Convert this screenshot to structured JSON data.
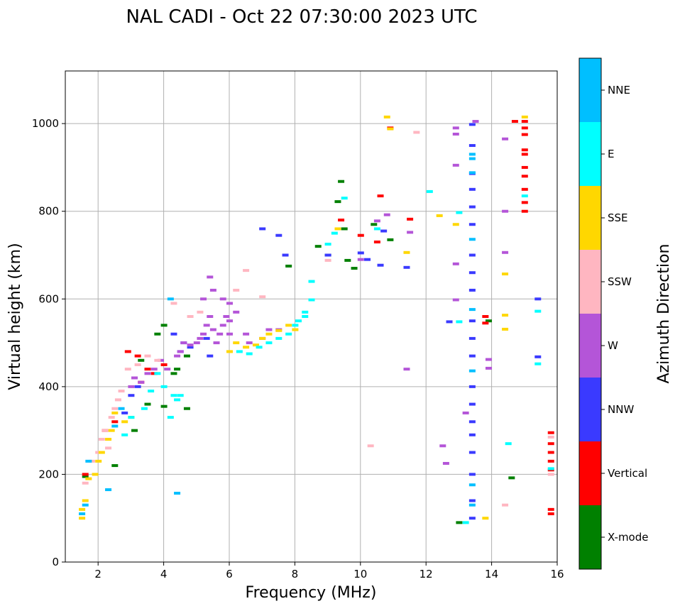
{
  "chart_data": {
    "type": "scatter",
    "title": "NAL CADI - Oct 22 07:30:00 2023 UTC",
    "xlabel": "Frequency (MHz)",
    "ylabel": "Virtual height (km)",
    "xlim": [
      1,
      16
    ],
    "ylim": [
      0,
      1120
    ],
    "xticks": [
      2,
      4,
      6,
      8,
      10,
      12,
      14,
      16
    ],
    "yticks": [
      0,
      200,
      400,
      600,
      800,
      1000
    ],
    "grid": true,
    "colorbar": {
      "label": "Azimuth Direction",
      "categories": [
        "X-mode",
        "Vertical",
        "NNW",
        "W",
        "SSW",
        "SSE",
        "E",
        "NNE"
      ],
      "colors": [
        "#008000",
        "#ff0000",
        "#3a3aff",
        "#b455d8",
        "#ffb6c1",
        "#ffd700",
        "#00ffff",
        "#00bfff"
      ]
    },
    "series": [
      {
        "name": "X-mode",
        "points": [
          [
            1.6,
            195
          ],
          [
            2.5,
            220
          ],
          [
            3.1,
            300
          ],
          [
            3.5,
            360
          ],
          [
            4.0,
            355
          ],
          [
            4.0,
            540
          ],
          [
            4.4,
            440
          ],
          [
            4.7,
            470
          ],
          [
            4.7,
            350
          ],
          [
            3.3,
            460
          ],
          [
            7.8,
            675
          ],
          [
            8.7,
            720
          ],
          [
            9.0,
            700
          ],
          [
            9.4,
            868
          ],
          [
            9.3,
            822
          ],
          [
            9.6,
            688
          ],
          [
            9.8,
            670
          ],
          [
            10.4,
            770
          ],
          [
            10.9,
            735
          ],
          [
            13.0,
            90
          ],
          [
            13.9,
            550
          ],
          [
            14.6,
            192
          ],
          [
            3.8,
            520
          ],
          [
            4.3,
            430
          ],
          [
            9.5,
            760
          ]
        ]
      },
      {
        "name": "Vertical",
        "points": [
          [
            1.6,
            200
          ],
          [
            2.2,
            300
          ],
          [
            2.5,
            320
          ],
          [
            2.9,
            480
          ],
          [
            3.2,
            470
          ],
          [
            3.3,
            410
          ],
          [
            3.5,
            440
          ],
          [
            3.7,
            430
          ],
          [
            4.0,
            450
          ],
          [
            9.4,
            780
          ],
          [
            10.0,
            745
          ],
          [
            10.5,
            730
          ],
          [
            10.6,
            835
          ],
          [
            10.9,
            990
          ],
          [
            11.5,
            782
          ],
          [
            13.8,
            560
          ],
          [
            13.8,
            545
          ],
          [
            14.7,
            1005
          ],
          [
            15.0,
            1005
          ],
          [
            15.0,
            990
          ],
          [
            15.0,
            975
          ],
          [
            15.0,
            940
          ],
          [
            15.0,
            930
          ],
          [
            15.0,
            900
          ],
          [
            15.0,
            880
          ],
          [
            15.0,
            850
          ],
          [
            15.0,
            820
          ],
          [
            15.0,
            800
          ],
          [
            15.8,
            295
          ],
          [
            15.8,
            270
          ],
          [
            15.8,
            250
          ],
          [
            15.8,
            230
          ],
          [
            15.8,
            210
          ],
          [
            15.8,
            120
          ],
          [
            15.8,
            110
          ]
        ]
      },
      {
        "name": "NNW",
        "points": [
          [
            2.8,
            340
          ],
          [
            3.0,
            380
          ],
          [
            3.2,
            400
          ],
          [
            4.3,
            520
          ],
          [
            4.5,
            480
          ],
          [
            4.6,
            500
          ],
          [
            4.8,
            490
          ],
          [
            5.3,
            510
          ],
          [
            5.4,
            470
          ],
          [
            7.0,
            760
          ],
          [
            7.7,
            700
          ],
          [
            7.5,
            745
          ],
          [
            9.0,
            700
          ],
          [
            10.0,
            705
          ],
          [
            10.2,
            690
          ],
          [
            10.6,
            677
          ],
          [
            10.7,
            755
          ],
          [
            11.4,
            672
          ],
          [
            12.7,
            548
          ],
          [
            13.4,
            998
          ],
          [
            13.4,
            950
          ],
          [
            13.4,
            886
          ],
          [
            13.4,
            850
          ],
          [
            13.4,
            810
          ],
          [
            13.4,
            770
          ],
          [
            13.4,
            700
          ],
          [
            13.4,
            660
          ],
          [
            13.4,
            620
          ],
          [
            13.4,
            550
          ],
          [
            13.4,
            510
          ],
          [
            13.4,
            470
          ],
          [
            13.4,
            400
          ],
          [
            13.4,
            360
          ],
          [
            13.4,
            320
          ],
          [
            13.4,
            290
          ],
          [
            13.4,
            250
          ],
          [
            13.4,
            200
          ],
          [
            13.4,
            140
          ],
          [
            13.4,
            100
          ],
          [
            15.4,
            600
          ],
          [
            15.4,
            468
          ]
        ]
      },
      {
        "name": "W",
        "points": [
          [
            3.0,
            400
          ],
          [
            3.1,
            420
          ],
          [
            3.3,
            410
          ],
          [
            3.5,
            430
          ],
          [
            3.7,
            440
          ],
          [
            3.9,
            460
          ],
          [
            4.1,
            440
          ],
          [
            4.4,
            470
          ],
          [
            4.5,
            480
          ],
          [
            4.6,
            500
          ],
          [
            4.8,
            495
          ],
          [
            5.0,
            500
          ],
          [
            5.1,
            510
          ],
          [
            5.2,
            520
          ],
          [
            5.3,
            540
          ],
          [
            5.4,
            560
          ],
          [
            5.5,
            530
          ],
          [
            5.6,
            500
          ],
          [
            5.7,
            520
          ],
          [
            5.8,
            540
          ],
          [
            5.9,
            560
          ],
          [
            6.0,
            520
          ],
          [
            6.0,
            550
          ],
          [
            5.2,
            600
          ],
          [
            5.4,
            650
          ],
          [
            5.5,
            620
          ],
          [
            5.8,
            600
          ],
          [
            6.0,
            590
          ],
          [
            6.2,
            570
          ],
          [
            6.5,
            520
          ],
          [
            6.6,
            500
          ],
          [
            7.0,
            510
          ],
          [
            7.2,
            530
          ],
          [
            7.5,
            530
          ],
          [
            10.0,
            690
          ],
          [
            10.5,
            778
          ],
          [
            10.8,
            792
          ],
          [
            11.4,
            440
          ],
          [
            11.5,
            752
          ],
          [
            12.5,
            265
          ],
          [
            12.6,
            225
          ],
          [
            12.9,
            990
          ],
          [
            12.9,
            976
          ],
          [
            12.9,
            905
          ],
          [
            12.9,
            680
          ],
          [
            12.9,
            598
          ],
          [
            13.2,
            340
          ],
          [
            13.5,
            1005
          ],
          [
            14.4,
            800
          ],
          [
            14.4,
            965
          ],
          [
            14.4,
            706
          ],
          [
            13.9,
            462
          ],
          [
            13.9,
            442
          ]
        ]
      },
      {
        "name": "SSW",
        "points": [
          [
            1.6,
            180
          ],
          [
            1.8,
            230
          ],
          [
            2.0,
            250
          ],
          [
            2.1,
            280
          ],
          [
            2.2,
            300
          ],
          [
            2.3,
            260
          ],
          [
            2.4,
            330
          ],
          [
            2.5,
            350
          ],
          [
            2.6,
            370
          ],
          [
            2.7,
            390
          ],
          [
            2.9,
            440
          ],
          [
            3.2,
            450
          ],
          [
            3.5,
            470
          ],
          [
            3.8,
            460
          ],
          [
            4.3,
            590
          ],
          [
            4.8,
            560
          ],
          [
            5.1,
            570
          ],
          [
            6.2,
            620
          ],
          [
            6.5,
            665
          ],
          [
            7.0,
            605
          ],
          [
            9.0,
            688
          ],
          [
            10.3,
            265
          ],
          [
            11.7,
            980
          ],
          [
            14.4,
            130
          ],
          [
            15.8,
            285
          ],
          [
            15.8,
            200
          ]
        ]
      },
      {
        "name": "SSE",
        "points": [
          [
            1.5,
            100
          ],
          [
            1.5,
            120
          ],
          [
            1.6,
            140
          ],
          [
            1.7,
            190
          ],
          [
            1.9,
            200
          ],
          [
            2.0,
            230
          ],
          [
            2.1,
            250
          ],
          [
            2.3,
            280
          ],
          [
            2.4,
            300
          ],
          [
            2.5,
            340
          ],
          [
            2.8,
            320
          ],
          [
            3.0,
            330
          ],
          [
            6.0,
            480
          ],
          [
            6.2,
            500
          ],
          [
            6.5,
            490
          ],
          [
            6.8,
            495
          ],
          [
            7.0,
            510
          ],
          [
            7.2,
            520
          ],
          [
            7.5,
            528
          ],
          [
            7.8,
            540
          ],
          [
            8.0,
            530
          ],
          [
            9.3,
            760
          ],
          [
            10.8,
            1015
          ],
          [
            10.9,
            988
          ],
          [
            11.4,
            706
          ],
          [
            12.4,
            790
          ],
          [
            12.9,
            770
          ],
          [
            13.8,
            100
          ],
          [
            14.4,
            657
          ],
          [
            14.4,
            563
          ],
          [
            14.4,
            531
          ],
          [
            15.0,
            1015
          ]
        ]
      },
      {
        "name": "E",
        "points": [
          [
            2.8,
            290
          ],
          [
            3.0,
            330
          ],
          [
            3.4,
            350
          ],
          [
            3.6,
            390
          ],
          [
            3.8,
            430
          ],
          [
            4.0,
            400
          ],
          [
            4.2,
            330
          ],
          [
            4.3,
            380
          ],
          [
            4.4,
            370
          ],
          [
            4.5,
            380
          ],
          [
            6.3,
            480
          ],
          [
            6.6,
            475
          ],
          [
            6.9,
            490
          ],
          [
            7.2,
            500
          ],
          [
            7.5,
            510
          ],
          [
            7.8,
            520
          ],
          [
            8.0,
            540
          ],
          [
            8.1,
            550
          ],
          [
            8.3,
            560
          ],
          [
            8.3,
            570
          ],
          [
            8.5,
            598
          ],
          [
            8.5,
            640
          ],
          [
            9.0,
            725
          ],
          [
            9.2,
            750
          ],
          [
            9.5,
            830
          ],
          [
            10.5,
            760
          ],
          [
            12.1,
            845
          ],
          [
            13.0,
            797
          ],
          [
            13.0,
            548
          ],
          [
            13.2,
            90
          ],
          [
            14.5,
            270
          ],
          [
            15.8,
            213
          ],
          [
            15.4,
            572
          ],
          [
            15.4,
            452
          ],
          [
            15.0,
            835
          ]
        ]
      },
      {
        "name": "NNE",
        "points": [
          [
            1.5,
            110
          ],
          [
            1.6,
            130
          ],
          [
            1.7,
            230
          ],
          [
            2.3,
            165
          ],
          [
            2.5,
            310
          ],
          [
            2.7,
            350
          ],
          [
            4.4,
            157
          ],
          [
            4.2,
            600
          ],
          [
            13.4,
            930
          ],
          [
            13.4,
            920
          ],
          [
            13.4,
            888
          ],
          [
            13.4,
            736
          ],
          [
            13.4,
            576
          ],
          [
            13.4,
            436
          ],
          [
            13.4,
            176
          ],
          [
            13.4,
            130
          ]
        ]
      }
    ]
  }
}
